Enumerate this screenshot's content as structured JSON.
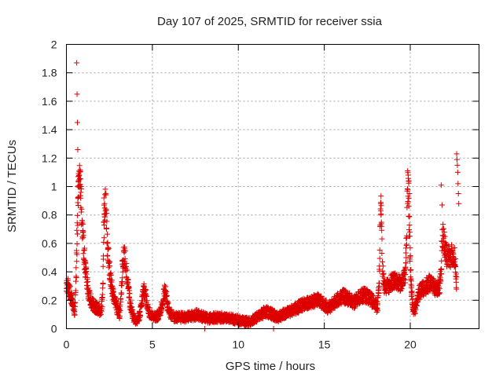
{
  "chart_data": {
    "type": "scatter",
    "title": "Day 107 of 2025, SRMTID for receiver ssia",
    "xlabel": "GPS time / hours",
    "ylabel": "SRMTID / TECUs",
    "xlim": [
      0,
      24
    ],
    "ylim": [
      0,
      2
    ],
    "x_ticks": [
      0,
      5,
      10,
      15,
      20
    ],
    "x_tick_labels": [
      "0",
      "5",
      "10",
      "15",
      "20"
    ],
    "y_ticks": [
      0,
      0.2,
      0.4,
      0.6,
      0.8,
      1,
      1.2,
      1.4,
      1.6,
      1.8,
      2
    ],
    "y_tick_labels": [
      "0",
      "0.2",
      "0.4",
      "0.6",
      "0.8",
      "1",
      "1.2",
      "1.4",
      "1.6",
      "1.8",
      "2"
    ],
    "grid": true,
    "marker": "+",
    "marker_color": "#dd0000",
    "series": [
      {
        "name": "SRMTID",
        "envelope": [
          [
            0.0,
            0.28
          ],
          [
            0.1,
            0.3
          ],
          [
            0.2,
            0.26
          ],
          [
            0.3,
            0.22
          ],
          [
            0.4,
            0.16
          ],
          [
            0.45,
            0.11
          ],
          [
            0.5,
            0.15
          ],
          [
            0.55,
            0.3
          ],
          [
            0.6,
            0.55
          ],
          [
            0.65,
            0.8
          ],
          [
            0.7,
            0.98
          ],
          [
            0.75,
            1.05
          ],
          [
            0.8,
            1.02
          ],
          [
            0.85,
            0.9
          ],
          [
            0.9,
            0.8
          ],
          [
            0.95,
            0.7
          ],
          [
            1.0,
            0.58
          ],
          [
            1.1,
            0.42
          ],
          [
            1.2,
            0.32
          ],
          [
            1.3,
            0.24
          ],
          [
            1.4,
            0.2
          ],
          [
            1.6,
            0.16
          ],
          [
            1.8,
            0.14
          ],
          [
            2.0,
            0.13
          ],
          [
            2.1,
            0.2
          ],
          [
            2.15,
            0.55
          ],
          [
            2.2,
            0.8
          ],
          [
            2.25,
            0.9
          ],
          [
            2.3,
            0.86
          ],
          [
            2.35,
            0.72
          ],
          [
            2.4,
            0.56
          ],
          [
            2.5,
            0.42
          ],
          [
            2.6,
            0.33
          ],
          [
            2.7,
            0.26
          ],
          [
            2.8,
            0.2
          ],
          [
            2.9,
            0.16
          ],
          [
            3.0,
            0.12
          ],
          [
            3.1,
            0.1
          ],
          [
            3.2,
            0.3
          ],
          [
            3.3,
            0.48
          ],
          [
            3.35,
            0.52
          ],
          [
            3.4,
            0.5
          ],
          [
            3.5,
            0.4
          ],
          [
            3.6,
            0.28
          ],
          [
            3.7,
            0.18
          ],
          [
            3.8,
            0.12
          ],
          [
            3.9,
            0.08
          ],
          [
            4.0,
            0.06
          ],
          [
            4.1,
            0.06
          ],
          [
            4.2,
            0.08
          ],
          [
            4.3,
            0.12
          ],
          [
            4.4,
            0.2
          ],
          [
            4.5,
            0.28
          ],
          [
            4.6,
            0.24
          ],
          [
            4.7,
            0.16
          ],
          [
            4.8,
            0.12
          ],
          [
            5.0,
            0.09
          ],
          [
            5.2,
            0.08
          ],
          [
            5.4,
            0.1
          ],
          [
            5.5,
            0.14
          ],
          [
            5.6,
            0.2
          ],
          [
            5.7,
            0.27
          ],
          [
            5.8,
            0.24
          ],
          [
            5.9,
            0.16
          ],
          [
            6.0,
            0.11
          ],
          [
            6.3,
            0.08
          ],
          [
            6.6,
            0.08
          ],
          [
            7.0,
            0.08
          ],
          [
            7.3,
            0.09
          ],
          [
            7.6,
            0.1
          ],
          [
            8.0,
            0.08
          ],
          [
            8.3,
            0.07
          ],
          [
            8.6,
            0.08
          ],
          [
            9.0,
            0.08
          ],
          [
            9.3,
            0.07
          ],
          [
            9.6,
            0.07
          ],
          [
            10.0,
            0.06
          ],
          [
            10.3,
            0.05
          ],
          [
            10.6,
            0.05
          ],
          [
            11.0,
            0.07
          ],
          [
            11.3,
            0.1
          ],
          [
            11.6,
            0.12
          ],
          [
            12.0,
            0.1
          ],
          [
            12.3,
            0.08
          ],
          [
            12.6,
            0.1
          ],
          [
            13.0,
            0.12
          ],
          [
            13.3,
            0.14
          ],
          [
            13.6,
            0.16
          ],
          [
            14.0,
            0.18
          ],
          [
            14.3,
            0.19
          ],
          [
            14.6,
            0.2
          ],
          [
            14.9,
            0.18
          ],
          [
            15.2,
            0.15
          ],
          [
            15.5,
            0.17
          ],
          [
            15.8,
            0.21
          ],
          [
            16.1,
            0.23
          ],
          [
            16.4,
            0.21
          ],
          [
            16.7,
            0.18
          ],
          [
            17.0,
            0.22
          ],
          [
            17.3,
            0.24
          ],
          [
            17.6,
            0.22
          ],
          [
            17.9,
            0.18
          ],
          [
            18.1,
            0.15
          ],
          [
            18.2,
            0.35
          ],
          [
            18.25,
            0.7
          ],
          [
            18.3,
            0.85
          ],
          [
            18.35,
            0.6
          ],
          [
            18.4,
            0.4
          ],
          [
            18.5,
            0.28
          ],
          [
            18.7,
            0.3
          ],
          [
            18.9,
            0.33
          ],
          [
            19.1,
            0.35
          ],
          [
            19.3,
            0.33
          ],
          [
            19.5,
            0.32
          ],
          [
            19.7,
            0.36
          ],
          [
            19.8,
            0.7
          ],
          [
            19.85,
            1.02
          ],
          [
            19.9,
            0.95
          ],
          [
            19.95,
            0.7
          ],
          [
            20.0,
            0.45
          ],
          [
            20.1,
            0.22
          ],
          [
            20.2,
            0.12
          ],
          [
            20.3,
            0.15
          ],
          [
            20.5,
            0.25
          ],
          [
            20.7,
            0.28
          ],
          [
            20.9,
            0.3
          ],
          [
            21.1,
            0.32
          ],
          [
            21.3,
            0.3
          ],
          [
            21.5,
            0.28
          ],
          [
            21.7,
            0.3
          ],
          [
            21.8,
            0.45
          ],
          [
            21.85,
            0.6
          ],
          [
            21.9,
            0.66
          ],
          [
            22.0,
            0.58
          ],
          [
            22.1,
            0.52
          ],
          [
            22.3,
            0.5
          ],
          [
            22.5,
            0.52
          ],
          [
            22.6,
            0.48
          ],
          [
            22.7,
            0.3
          ]
        ],
        "spikes": [
          [
            0.6,
            1.87
          ],
          [
            0.62,
            1.65
          ],
          [
            0.64,
            1.45
          ],
          [
            0.66,
            1.26
          ],
          [
            0.68,
            1.07
          ],
          [
            0.7,
            1.04
          ],
          [
            0.75,
            1.08
          ],
          [
            0.8,
            1.0
          ],
          [
            2.18,
            0.92
          ],
          [
            2.22,
            0.88
          ],
          [
            3.35,
            0.55
          ],
          [
            18.28,
            0.88
          ],
          [
            18.3,
            0.8
          ],
          [
            19.85,
            1.11
          ],
          [
            19.88,
            1.08
          ],
          [
            19.92,
            1.04
          ],
          [
            19.95,
            0.95
          ],
          [
            21.8,
            1.01
          ],
          [
            21.85,
            0.87
          ],
          [
            22.7,
            1.23
          ],
          [
            22.72,
            1.19
          ],
          [
            22.74,
            1.15
          ],
          [
            22.76,
            1.1
          ],
          [
            22.78,
            1.02
          ],
          [
            22.8,
            0.95
          ],
          [
            22.82,
            0.88
          ],
          [
            8.05,
            0.0
          ],
          [
            12.05,
            0.0
          ],
          [
            10.45,
            0.02
          ]
        ]
      }
    ]
  }
}
